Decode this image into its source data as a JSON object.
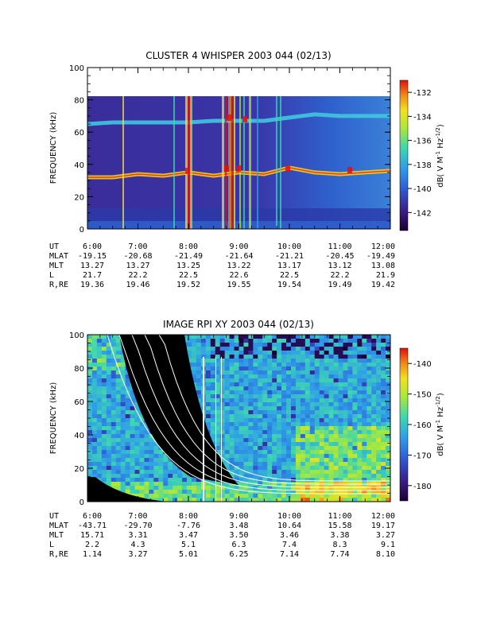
{
  "chart_data": [
    {
      "type": "heatmap",
      "title": "CLUSTER 4 WHISPER 2003 044 (02/13)",
      "ylabel": "FREQUENCY (kHz)",
      "ylim": [
        0,
        100
      ],
      "yticks": [
        "0",
        "20",
        "40",
        "60",
        "80",
        "100"
      ],
      "xlim": [
        "6:00",
        "12:00"
      ],
      "data_top_khz": 80,
      "series": [
        {
          "name": "",
          "x": [
            "6:00",
            "6:30",
            "7:00",
            "7:30",
            "8:00",
            "8:30",
            "9:00",
            "9:30",
            "10:00",
            "10:30",
            "11:00",
            "11:30",
            "12:00"
          ],
          "values_lower_band_khz": [
            32,
            32,
            34,
            33,
            35,
            33,
            35,
            34,
            38,
            35,
            34,
            35,
            36
          ],
          "values_upper_band_khz": [
            65,
            66,
            66,
            66,
            66,
            67,
            67,
            67,
            69,
            71,
            70,
            70,
            70
          ]
        }
      ],
      "colorbar": {
        "label": "dB( V M⁻¹ Hz⁻¹ᐟ²)",
        "label_text": "dB( V M",
        "label_sup1": "-1",
        "label_mid": " Hz",
        "label_sup2": "-1/2",
        "label_end": ")",
        "ticks": [
          "-132",
          "-134",
          "-136",
          "-138",
          "-140",
          "-142"
        ],
        "range": [
          -143.5,
          -131
        ]
      },
      "ephemeris": {
        "rows": [
          {
            "label": "UT",
            "values": [
              "6:00",
              "7:00",
              "8:00",
              "9:00",
              "10:00",
              "11:00",
              "12:00"
            ]
          },
          {
            "label": "MLAT",
            "values": [
              "-19.15",
              "-20.68",
              "-21.49",
              "-21.64",
              "-21.21",
              "-20.45",
              "-19.49"
            ]
          },
          {
            "label": "MLT",
            "values": [
              "13.27",
              "13.27",
              "13.25",
              "13.22",
              "13.17",
              "13.12",
              "13.08"
            ]
          },
          {
            "label": "L",
            "values": [
              "21.7",
              "22.2",
              "22.5",
              "22.6",
              "22.5",
              "22.2",
              "21.9"
            ]
          },
          {
            "label": "R,RE",
            "values": [
              "19.36",
              "19.46",
              "19.52",
              "19.55",
              "19.54",
              "19.49",
              "19.42"
            ]
          }
        ]
      }
    },
    {
      "type": "heatmap",
      "title": "IMAGE RPI XY 2003 044 (02/13)",
      "ylabel": "FREQUENCY (kHz)",
      "ylim": [
        0,
        100
      ],
      "yticks": [
        "0",
        "20",
        "40",
        "60",
        "80",
        "100"
      ],
      "xlim": [
        "6:00",
        "12:00"
      ],
      "colorbar": {
        "label_text": "dB( V M",
        "label_sup1": "-1",
        "label_mid": " Hz",
        "label_sup2": "-1/2",
        "label_end": ")",
        "ticks": [
          "-140",
          "-150",
          "-160",
          "-170",
          "-180"
        ],
        "range": [
          -185,
          -135
        ]
      },
      "ephemeris": {
        "rows": [
          {
            "label": "UT",
            "values": [
              "6:00",
              "7:00",
              "8:00",
              "9:00",
              "10:00",
              "11:00",
              "12:00"
            ]
          },
          {
            "label": "MLAT",
            "values": [
              "-43.71",
              "-29.70",
              "-7.76",
              "3.48",
              "10.64",
              "15.58",
              "19.17"
            ]
          },
          {
            "label": "MLT",
            "values": [
              "15.71",
              "3.31",
              "3.47",
              "3.50",
              "3.46",
              "3.38",
              "3.27"
            ]
          },
          {
            "label": "L",
            "values": [
              "2.2",
              "4.3",
              "5.1",
              "6.3",
              "7.4",
              "8.3",
              "9.1"
            ]
          },
          {
            "label": "R,RE",
            "values": [
              "1.14",
              "3.27",
              "5.01",
              "6.25",
              "7.14",
              "7.74",
              "8.10"
            ]
          }
        ]
      }
    }
  ],
  "colors": {
    "background": "#ffffff",
    "frame": "#000000",
    "curves": "#ffffff"
  }
}
